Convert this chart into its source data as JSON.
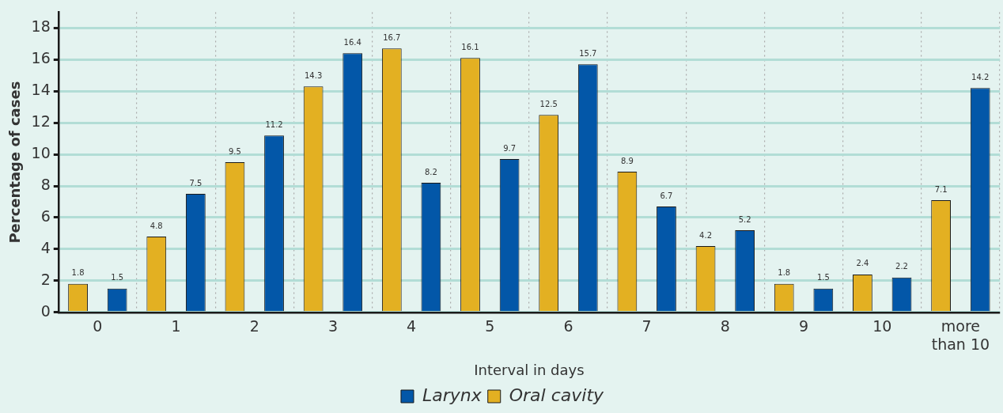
{
  "chart_data": {
    "type": "bar",
    "xlabel": "Interval in days",
    "ylabel": "Percentage of cases",
    "categories": [
      "0",
      "1",
      "2",
      "3",
      "4",
      "5",
      "6",
      "7",
      "8",
      "9",
      "10",
      "more than 10"
    ],
    "series": [
      {
        "name": "Oral cavity",
        "color": "#e3b022",
        "values": [
          1.8,
          4.8,
          9.5,
          14.3,
          16.7,
          16.1,
          12.5,
          8.9,
          4.2,
          1.8,
          2.4,
          7.1
        ]
      },
      {
        "name": "Larynx",
        "color": "#0357a8",
        "values": [
          1.5,
          7.5,
          11.2,
          16.4,
          8.2,
          9.7,
          15.7,
          6.7,
          5.2,
          1.5,
          2.2,
          14.2
        ]
      }
    ],
    "ylim": [
      0,
      19
    ],
    "yticks": [
      0,
      2,
      4,
      6,
      8,
      10,
      12,
      14,
      16,
      18
    ],
    "grid": true,
    "legend": "bottom",
    "data_labels": true
  }
}
